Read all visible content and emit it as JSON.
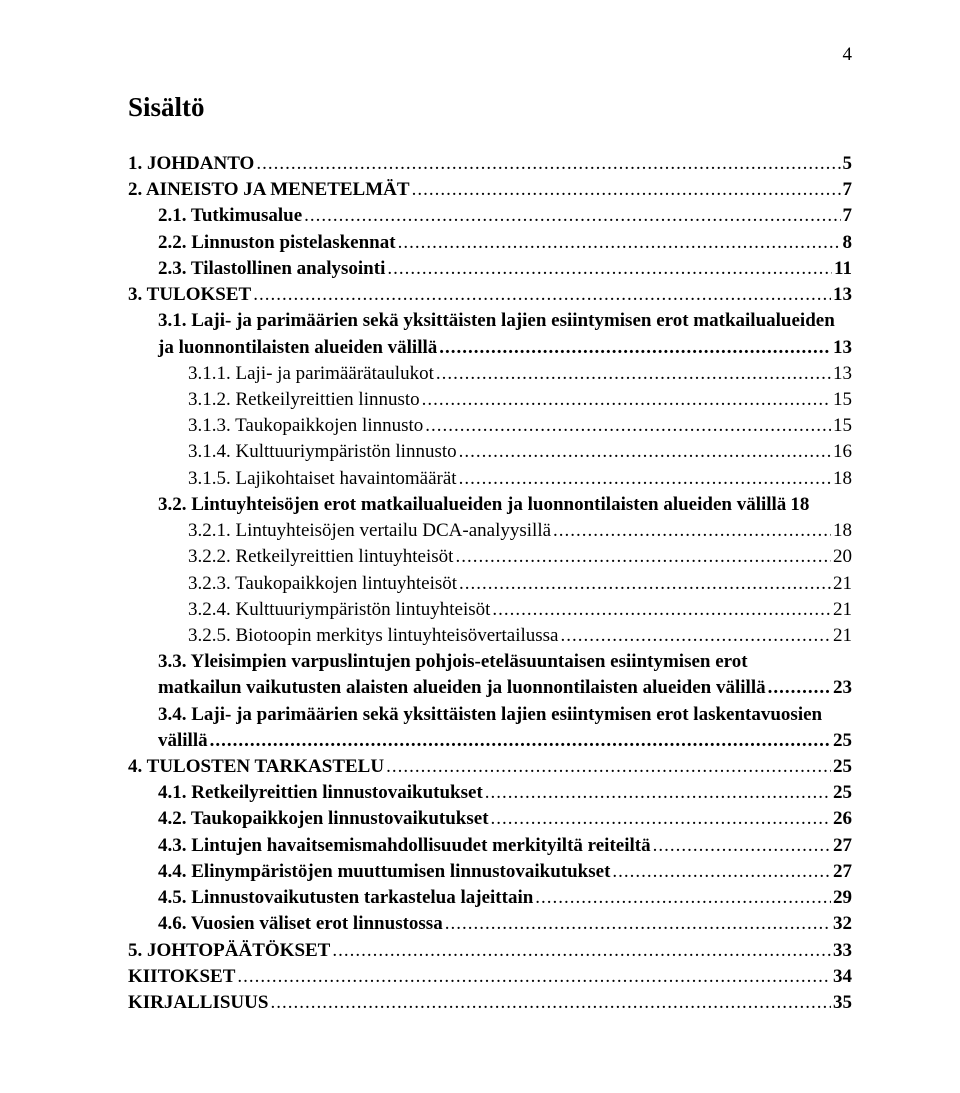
{
  "page_number": "4",
  "title": "Sisältö",
  "entries": [
    {
      "indent": 0,
      "bold": true,
      "text": "1. JOHDANTO",
      "page": "5"
    },
    {
      "indent": 0,
      "bold": true,
      "text": "2. AINEISTO JA MENETELMÄT",
      "page": "7"
    },
    {
      "indent": 1,
      "bold": true,
      "text": "2.1. Tutkimusalue",
      "page": "7"
    },
    {
      "indent": 1,
      "bold": true,
      "text": "2.2. Linnuston pistelaskennat",
      "page": "8"
    },
    {
      "indent": 1,
      "bold": true,
      "text": "2.3. Tilastollinen analysointi",
      "page": "11"
    },
    {
      "indent": 0,
      "bold": true,
      "text": "3. TULOKSET",
      "page": "13"
    },
    {
      "indent": 1,
      "bold": true,
      "multiline": true,
      "first": "3.1. Laji- ja parimäärien sekä yksittäisten lajien esiintymisen erot matkailualueiden",
      "last": "ja luonnontilaisten alueiden välillä",
      "page": "13"
    },
    {
      "indent": 2,
      "bold": false,
      "text": "3.1.1. Laji- ja parimäärätaulukot",
      "page": "13"
    },
    {
      "indent": 2,
      "bold": false,
      "text": "3.1.2. Retkeilyreittien linnusto",
      "page": "15"
    },
    {
      "indent": 2,
      "bold": false,
      "text": "3.1.3. Taukopaikkojen linnusto",
      "page": "15"
    },
    {
      "indent": 2,
      "bold": false,
      "text": "3.1.4. Kulttuuriympäristön linnusto",
      "page": "16"
    },
    {
      "indent": 2,
      "bold": false,
      "text": "3.1.5. Lajikohtaiset havaintomäärät",
      "page": "18"
    },
    {
      "indent": 1,
      "bold": true,
      "text": "3.2. Lintuyhteisöjen erot matkailualueiden ja luonnontilaisten alueiden välillä",
      "page": "18",
      "noleader": true
    },
    {
      "indent": 2,
      "bold": false,
      "text": "3.2.1. Lintuyhteisöjen vertailu DCA-analyysillä",
      "page": "18"
    },
    {
      "indent": 2,
      "bold": false,
      "text": "3.2.2. Retkeilyreittien lintuyhteisöt",
      "page": "20"
    },
    {
      "indent": 2,
      "bold": false,
      "text": "3.2.3. Taukopaikkojen lintuyhteisöt",
      "page": "21"
    },
    {
      "indent": 2,
      "bold": false,
      "text": "3.2.4. Kulttuuriympäristön lintuyhteisöt",
      "page": "21"
    },
    {
      "indent": 2,
      "bold": false,
      "text": "3.2.5. Biotoopin merkitys lintuyhteisövertailussa",
      "page": "21"
    },
    {
      "indent": 1,
      "bold": true,
      "multiline": true,
      "first": "3.3. Yleisimpien varpuslintujen pohjois-eteläsuuntaisen esiintymisen erot",
      "last": "matkailun vaikutusten alaisten alueiden ja luonnontilaisten alueiden välillä",
      "page": "23"
    },
    {
      "indent": 1,
      "bold": true,
      "multiline": true,
      "first": "3.4. Laji- ja parimäärien sekä yksittäisten lajien esiintymisen erot laskentavuosien",
      "last": "välillä",
      "page": "25"
    },
    {
      "indent": 0,
      "bold": true,
      "text": "4. TULOSTEN TARKASTELU",
      "page": "25"
    },
    {
      "indent": 1,
      "bold": true,
      "text": "4.1. Retkeilyreittien linnustovaikutukset",
      "page": "25"
    },
    {
      "indent": 1,
      "bold": true,
      "text": "4.2. Taukopaikkojen linnustovaikutukset",
      "page": "26"
    },
    {
      "indent": 1,
      "bold": true,
      "text": "4.3. Lintujen havaitsemismahdollisuudet merkityiltä reiteiltä",
      "page": "27"
    },
    {
      "indent": 1,
      "bold": true,
      "text": "4.4. Elinympäristöjen muuttumisen linnustovaikutukset",
      "page": "27"
    },
    {
      "indent": 1,
      "bold": true,
      "text": "4.5. Linnustovaikutusten tarkastelua lajeittain",
      "page": "29"
    },
    {
      "indent": 1,
      "bold": true,
      "text": "4.6. Vuosien väliset erot linnustossa",
      "page": "32"
    },
    {
      "indent": 0,
      "bold": true,
      "text": "5. JOHTOPÄÄTÖKSET",
      "page": "33"
    },
    {
      "indent": 0,
      "bold": true,
      "text": "KIITOKSET",
      "page": "34"
    },
    {
      "indent": 0,
      "bold": true,
      "text": "KIRJALLISUUS",
      "page": "35"
    }
  ]
}
